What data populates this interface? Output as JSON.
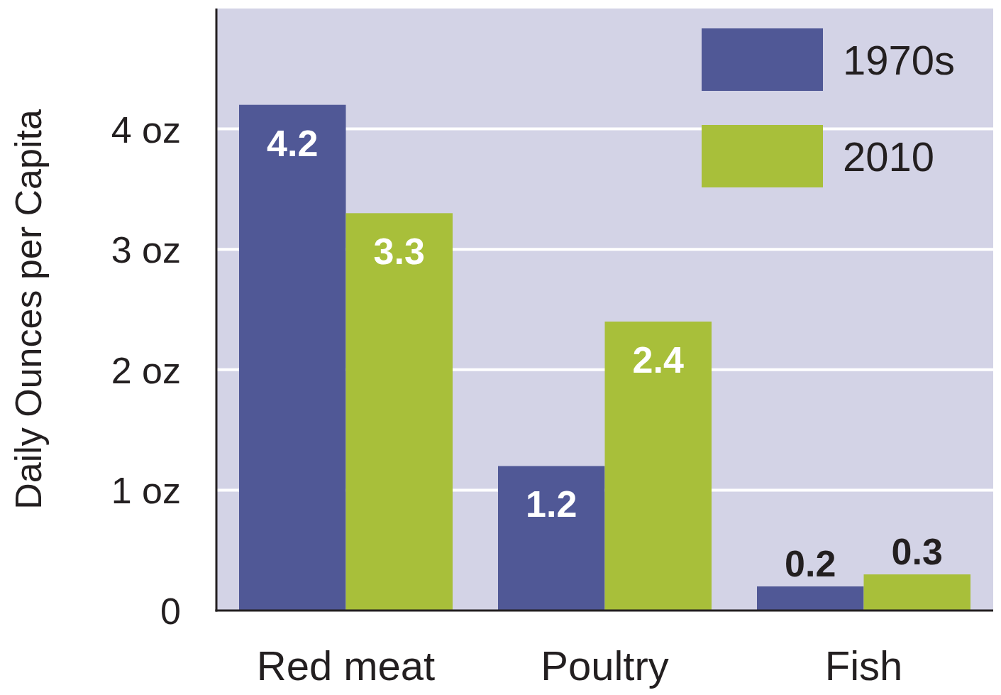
{
  "chart_data": {
    "type": "bar",
    "y_label": "Daily Ounces per Capita",
    "categories": [
      "Red meat",
      "Poultry",
      "Fish"
    ],
    "series": [
      {
        "name": "1970s",
        "color": "#505896",
        "values": [
          4.2,
          1.2,
          0.2
        ]
      },
      {
        "name": "2010",
        "color": "#a8bf3a",
        "values": [
          3.3,
          2.4,
          0.3
        ]
      }
    ],
    "ylim": [
      0,
      5
    ],
    "yticks": [
      0,
      {
        "value": 1,
        "label": "1 oz"
      },
      {
        "value": 2,
        "label": "2 oz"
      },
      {
        "value": 3,
        "label": "3 oz"
      },
      {
        "value": 4,
        "label": "4 oz"
      }
    ],
    "grid": true,
    "legend": "top-right",
    "data_labels": true
  }
}
